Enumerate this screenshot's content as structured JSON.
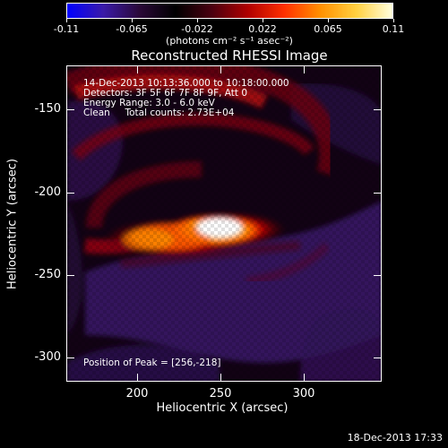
{
  "colorbar": {
    "tick_labels": [
      "-0.11",
      "-0.065",
      "-0.022",
      "0.022",
      "0.065",
      "0.11"
    ],
    "units": "(photons cm⁻² s⁻¹ asec⁻²)",
    "colors": [
      "#0000ff",
      "#3a1aa8",
      "#2a0838",
      "#000000",
      "#4a0010",
      "#b00000",
      "#ff3000",
      "#ff9000",
      "#ffd040",
      "#ffffe0"
    ]
  },
  "plot": {
    "title": "Reconstructed RHESSI Image",
    "info": {
      "time_range": "14-Dec-2013 10:13:36.000 to 10:18:00.000",
      "detectors": "Detectors: 3F 5F 6F 7F 8F 9F, Att 0",
      "energy_range": "Energy Range: 3.0 - 6.0 keV",
      "method": "Clean     Total counts: 2.73E+04"
    },
    "peak_position": "Position of Peak = [256,-218]",
    "x_axis": {
      "label": "Heliocentric X (arcsec)",
      "ticks": [
        "200",
        "250",
        "300"
      ],
      "range": [
        155,
        345
      ]
    },
    "y_axis": {
      "label": "Heliocentric Y (arcsec)",
      "ticks": [
        "-150",
        "-200",
        "-250",
        "-300"
      ],
      "range": [
        -320,
        -130
      ]
    }
  },
  "timestamp": "18-Dec-2013 17:33"
}
